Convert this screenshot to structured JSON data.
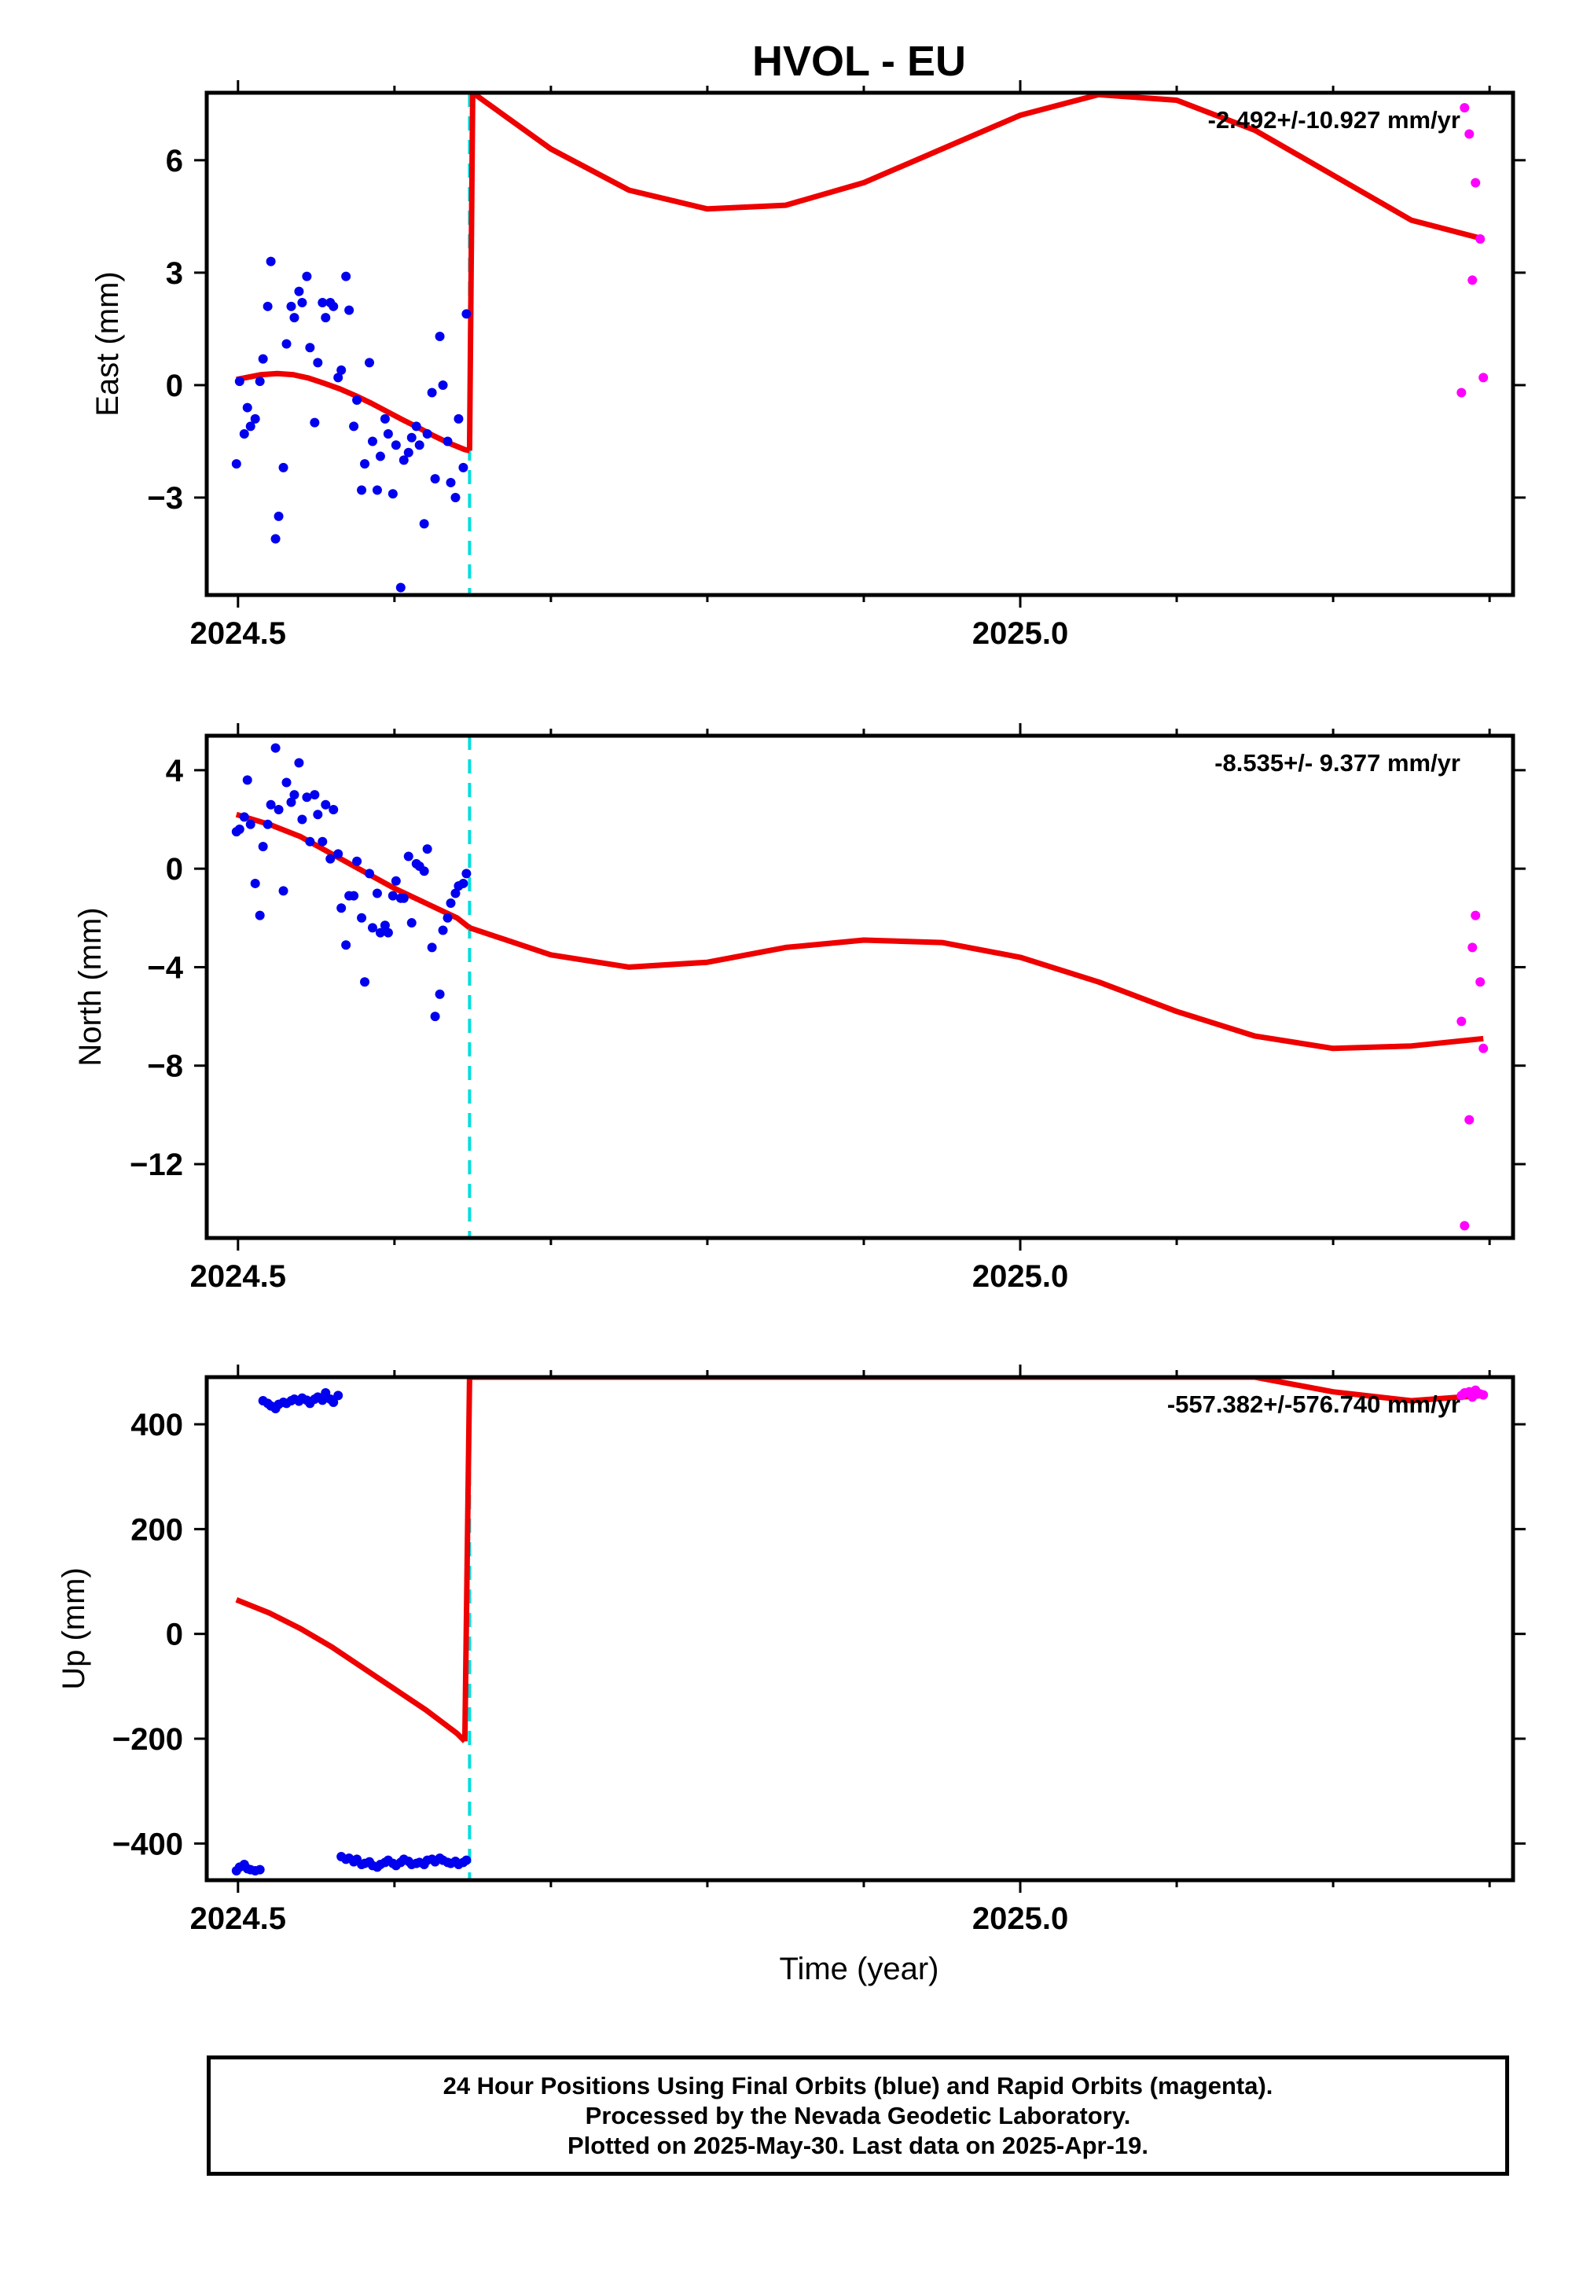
{
  "title": "HVOL - EU",
  "x_axis_label": "Time (year)",
  "footer": {
    "line1": "24 Hour Positions Using Final Orbits (blue) and Rapid Orbits (magenta).",
    "line2": "Processed by the Nevada Geodetic Laboratory.",
    "line3": "Plotted on 2025-May-30. Last data on 2025-Apr-19."
  },
  "colors": {
    "final_orbits": "#0000ee",
    "rapid_orbits": "#ff00ff",
    "model": "#ee0000",
    "break_line": "#00dddd",
    "frame": "#000000"
  },
  "chart_data": [
    {
      "type": "scatter",
      "panel": "east",
      "ylabel": "East (mm)",
      "rate_label": "-2.492+/-10.927 mm/yr",
      "xlim": [
        2024.48,
        2025.315
      ],
      "ylim": [
        -5.6,
        7.8
      ],
      "xticks": [
        2024.5,
        2025.0
      ],
      "xtick_labels": [
        "2024.5",
        "2025.0"
      ],
      "yticks": [
        -3,
        0,
        3,
        6
      ],
      "ytick_labels": [
        "−3",
        "0",
        "3",
        "6"
      ],
      "break_x": 2024.648,
      "series": [
        {
          "role": "final",
          "x": [
            2024.499,
            2024.501,
            2024.504,
            2024.506,
            2024.508,
            2024.511,
            2024.514,
            2024.516,
            2024.519,
            2024.521,
            2024.524,
            2024.526,
            2024.529,
            2024.531,
            2024.534,
            2024.536,
            2024.539,
            2024.541,
            2024.544,
            2024.546,
            2024.549,
            2024.551,
            2024.554,
            2024.556,
            2024.559,
            2024.561,
            2024.564,
            2024.566,
            2024.569,
            2024.571,
            2024.574,
            2024.576,
            2024.579,
            2024.581,
            2024.584,
            2024.586,
            2024.589,
            2024.591,
            2024.594,
            2024.596,
            2024.599,
            2024.601,
            2024.604,
            2024.606,
            2024.609,
            2024.611,
            2024.614,
            2024.616,
            2024.619,
            2024.621,
            2024.624,
            2024.626,
            2024.629,
            2024.631,
            2024.634,
            2024.636,
            2024.639,
            2024.641,
            2024.644,
            2024.646
          ],
          "y": [
            -2.1,
            0.1,
            -1.3,
            -0.6,
            -1.1,
            -0.9,
            0.1,
            0.7,
            2.1,
            3.3,
            -4.1,
            -3.5,
            -2.2,
            1.1,
            2.1,
            1.8,
            2.5,
            2.2,
            2.9,
            1.0,
            -1.0,
            0.6,
            2.2,
            1.8,
            2.2,
            2.1,
            0.2,
            0.4,
            2.9,
            2.0,
            -1.1,
            -0.4,
            -2.8,
            -2.1,
            0.6,
            -1.5,
            -2.8,
            -1.9,
            -0.9,
            -1.3,
            -2.9,
            -1.6,
            -5.4,
            -2.0,
            -1.8,
            -1.4,
            -1.1,
            -1.6,
            -3.7,
            -1.3,
            -0.2,
            -2.5,
            1.3,
            0.0,
            -1.5,
            -2.6,
            -3.0,
            -0.9,
            -2.2,
            1.9
          ]
        },
        {
          "role": "rapid",
          "x": [
            2025.282,
            2025.284,
            2025.287,
            2025.289,
            2025.291,
            2025.294,
            2025.296
          ],
          "y": [
            -0.2,
            7.4,
            6.7,
            2.8,
            5.4,
            3.9,
            0.2
          ]
        }
      ],
      "model": [
        {
          "x": [
            2024.499,
            2024.505,
            2024.515,
            2024.525,
            2024.535,
            2024.545,
            2024.555,
            2024.565,
            2024.575,
            2024.585,
            2024.595,
            2024.605,
            2024.615,
            2024.625,
            2024.635,
            2024.645,
            2024.648
          ],
          "y": [
            0.15,
            0.2,
            0.28,
            0.31,
            0.28,
            0.19,
            0.05,
            -0.1,
            -0.28,
            -0.48,
            -0.7,
            -0.92,
            -1.13,
            -1.35,
            -1.55,
            -1.72,
            -1.75
          ]
        },
        {
          "x": [
            2024.648,
            2024.65,
            2024.7,
            2024.75,
            2024.8,
            2024.85,
            2024.9,
            2024.95,
            2025.0,
            2025.05,
            2025.1,
            2025.15,
            2025.2,
            2025.25,
            2025.296
          ],
          "y": [
            -1.75,
            7.8,
            6.3,
            5.2,
            4.7,
            4.8,
            5.4,
            6.3,
            7.2,
            7.75,
            7.6,
            6.8,
            5.6,
            4.4,
            3.9
          ]
        }
      ]
    },
    {
      "type": "scatter",
      "panel": "north",
      "ylabel": "North (mm)",
      "rate_label": "-8.535+/- 9.377 mm/yr",
      "xlim": [
        2024.48,
        2025.315
      ],
      "ylim": [
        -15.0,
        5.4
      ],
      "xticks": [
        2024.5,
        2025.0
      ],
      "xtick_labels": [
        "2024.5",
        "2025.0"
      ],
      "yticks": [
        -12,
        -8,
        -4,
        0,
        4
      ],
      "ytick_labels": [
        "−12",
        "−8",
        "−4",
        "0",
        "4"
      ],
      "break_x": 2024.648,
      "series": [
        {
          "role": "final",
          "x": [
            2024.499,
            2024.501,
            2024.504,
            2024.506,
            2024.508,
            2024.511,
            2024.514,
            2024.516,
            2024.519,
            2024.521,
            2024.524,
            2024.526,
            2024.529,
            2024.531,
            2024.534,
            2024.536,
            2024.539,
            2024.541,
            2024.544,
            2024.546,
            2024.549,
            2024.551,
            2024.554,
            2024.556,
            2024.559,
            2024.561,
            2024.564,
            2024.566,
            2024.569,
            2024.571,
            2024.574,
            2024.576,
            2024.579,
            2024.581,
            2024.584,
            2024.586,
            2024.589,
            2024.591,
            2024.594,
            2024.596,
            2024.599,
            2024.601,
            2024.604,
            2024.606,
            2024.609,
            2024.611,
            2024.614,
            2024.616,
            2024.619,
            2024.621,
            2024.624,
            2024.626,
            2024.629,
            2024.631,
            2024.634,
            2024.636,
            2024.639,
            2024.641,
            2024.644,
            2024.646
          ],
          "y": [
            1.5,
            1.6,
            2.1,
            3.6,
            1.8,
            -0.6,
            -1.9,
            0.9,
            1.8,
            2.6,
            4.9,
            2.4,
            -0.9,
            3.5,
            2.7,
            3.0,
            4.3,
            2.0,
            2.9,
            1.1,
            3.0,
            2.2,
            1.1,
            2.6,
            0.4,
            2.4,
            0.6,
            -1.6,
            -3.1,
            -1.1,
            -1.1,
            0.3,
            -2.0,
            -4.6,
            -0.2,
            -2.4,
            -1.0,
            -2.6,
            -2.3,
            -2.6,
            -1.1,
            -0.5,
            -1.2,
            -1.2,
            0.5,
            -2.2,
            0.2,
            0.1,
            -0.1,
            0.8,
            -3.2,
            -6.0,
            -5.1,
            -2.5,
            -2.0,
            -1.4,
            -1.0,
            -0.7,
            -0.6,
            -0.2
          ]
        },
        {
          "role": "rapid",
          "x": [
            2025.282,
            2025.284,
            2025.287,
            2025.289,
            2025.291,
            2025.294,
            2025.296
          ],
          "y": [
            -6.2,
            -14.5,
            -10.2,
            -3.2,
            -1.9,
            -4.6,
            -7.3
          ]
        }
      ],
      "model": [
        {
          "x": [
            2024.499,
            2024.52,
            2024.54,
            2024.56,
            2024.58,
            2024.6,
            2024.62,
            2024.64,
            2024.648
          ],
          "y": [
            2.2,
            1.8,
            1.3,
            0.6,
            -0.1,
            -0.8,
            -1.4,
            -2.0,
            -2.4
          ]
        },
        {
          "x": [
            2024.648,
            2024.7,
            2024.75,
            2024.8,
            2024.85,
            2024.9,
            2024.95,
            2025.0,
            2025.05,
            2025.1,
            2025.15,
            2025.2,
            2025.25,
            2025.296
          ],
          "y": [
            -2.4,
            -3.5,
            -4.0,
            -3.8,
            -3.2,
            -2.9,
            -3.0,
            -3.6,
            -4.6,
            -5.8,
            -6.8,
            -7.3,
            -7.2,
            -6.9
          ]
        }
      ]
    },
    {
      "type": "scatter",
      "panel": "up",
      "ylabel": "Up (mm)",
      "rate_label": "-557.382+/-576.740 mm/yr",
      "xlim": [
        2024.48,
        2025.315
      ],
      "ylim": [
        -470,
        490
      ],
      "xticks": [
        2024.5,
        2025.0
      ],
      "xtick_labels": [
        "2024.5",
        "2025.0"
      ],
      "yticks": [
        -400,
        -200,
        0,
        200,
        400
      ],
      "ytick_labels": [
        "−400",
        "−200",
        "0",
        "200",
        "400"
      ],
      "break_x": 2024.648,
      "series": [
        {
          "role": "final",
          "x": [
            2024.499,
            2024.501,
            2024.504,
            2024.506,
            2024.508,
            2024.511,
            2024.514,
            2024.516,
            2024.519,
            2024.521,
            2024.524,
            2024.526,
            2024.529,
            2024.531,
            2024.534,
            2024.536,
            2024.539,
            2024.541,
            2024.544,
            2024.546,
            2024.549,
            2024.551,
            2024.554,
            2024.556,
            2024.559,
            2024.561,
            2024.564,
            2024.566,
            2024.569,
            2024.571,
            2024.574,
            2024.576,
            2024.579,
            2024.581,
            2024.584,
            2024.586,
            2024.589,
            2024.591,
            2024.594,
            2024.596,
            2024.599,
            2024.601,
            2024.604,
            2024.606,
            2024.609,
            2024.611,
            2024.614,
            2024.616,
            2024.619,
            2024.621,
            2024.624,
            2024.626,
            2024.629,
            2024.631,
            2024.634,
            2024.636,
            2024.639,
            2024.641,
            2024.644,
            2024.646
          ],
          "y": [
            -452,
            -445,
            -440,
            -448,
            -450,
            -452,
            -450,
            445,
            440,
            435,
            430,
            438,
            442,
            440,
            445,
            448,
            444,
            450,
            446,
            440,
            448,
            452,
            446,
            460,
            448,
            442,
            455,
            -425,
            -430,
            -428,
            -435,
            -430,
            -440,
            -438,
            -435,
            -442,
            -445,
            -440,
            -436,
            -432,
            -438,
            -442,
            -436,
            -430,
            -434,
            -440,
            -438,
            -436,
            -440,
            -432,
            -430,
            -435,
            -428,
            -432,
            -436,
            -438,
            -434,
            -440,
            -436,
            -432
          ]
        },
        {
          "role": "rapid",
          "x": [
            2025.282,
            2025.284,
            2025.287,
            2025.289,
            2025.291,
            2025.294,
            2025.296
          ],
          "y": [
            455,
            460,
            462,
            452,
            465,
            458,
            456
          ]
        }
      ],
      "model": [
        {
          "x": [
            2024.499,
            2024.52,
            2024.54,
            2024.56,
            2024.58,
            2024.6,
            2024.62,
            2024.64,
            2024.645
          ],
          "y": [
            65,
            40,
            10,
            -25,
            -65,
            -105,
            -145,
            -190,
            -205
          ]
        },
        {
          "x": [
            2024.645,
            2024.648,
            2025.15,
            2025.2,
            2025.25,
            2025.296
          ],
          "y": [
            -205,
            490,
            490,
            462,
            445,
            455
          ]
        }
      ]
    }
  ]
}
